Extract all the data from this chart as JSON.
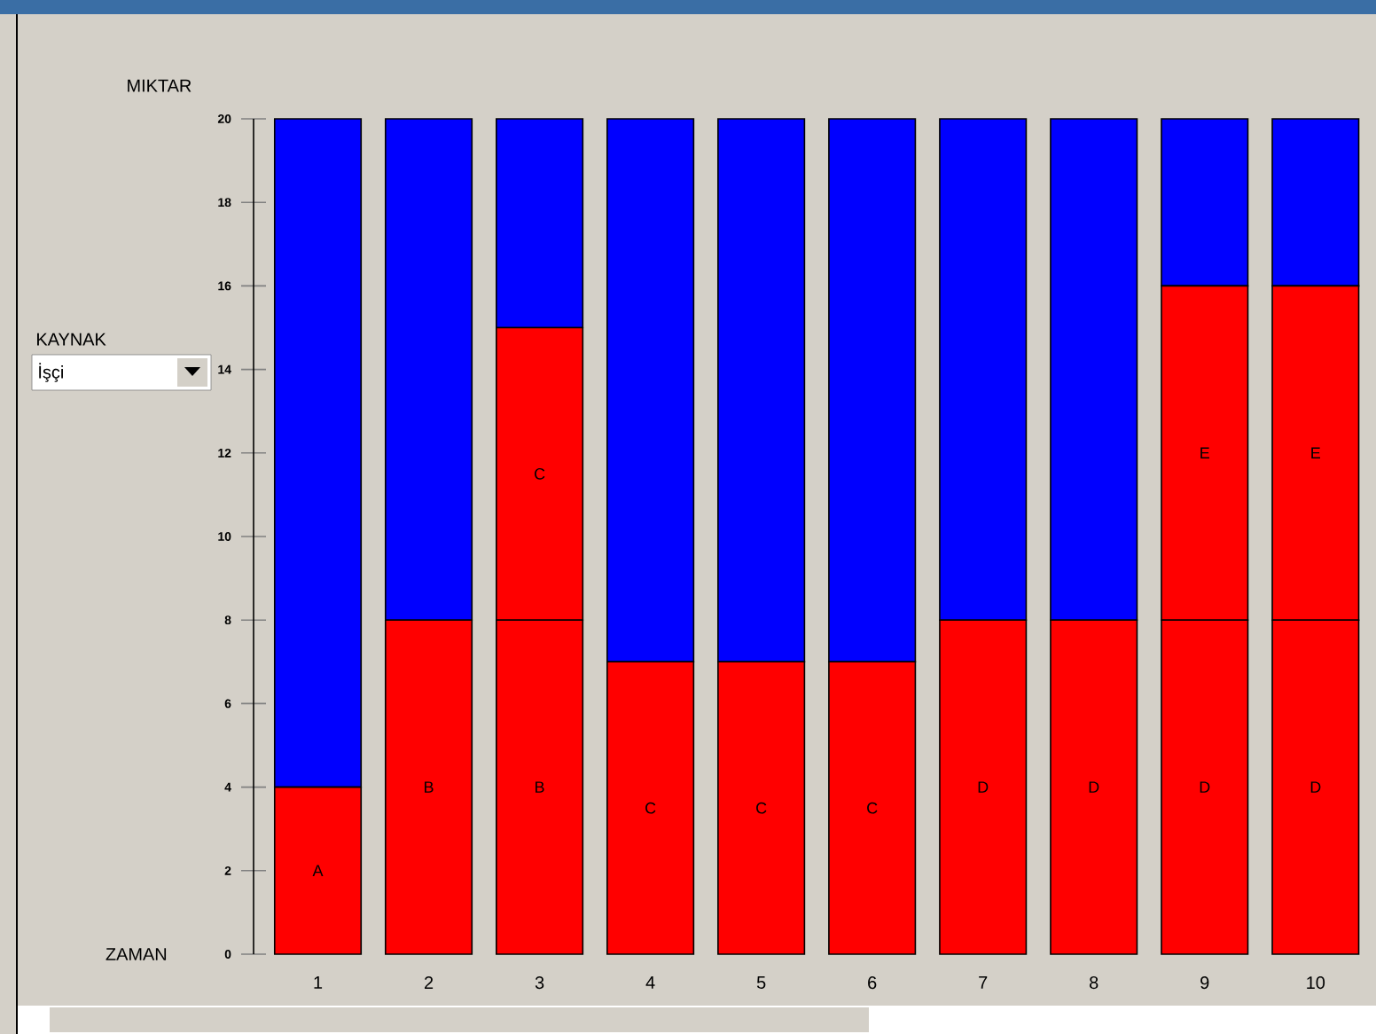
{
  "chart_data": {
    "type": "bar",
    "stacked": true,
    "xlabel": "ZAMAN",
    "ylabel": "MIKTAR",
    "categories": [
      "1",
      "2",
      "3",
      "4",
      "5",
      "6",
      "7",
      "8",
      "9",
      "10"
    ],
    "ylim": [
      0,
      20
    ],
    "yticks": [
      0,
      2,
      4,
      6,
      8,
      10,
      12,
      14,
      16,
      18,
      20
    ],
    "series": [
      {
        "color": "#ff0000",
        "values": [
          4,
          8,
          8,
          7,
          7,
          7,
          8,
          8,
          8,
          8
        ],
        "value_labels": [
          "A",
          "B",
          "B",
          "C",
          "C",
          "C",
          "D",
          "D",
          "D",
          "D"
        ]
      },
      {
        "color": "#ff0000",
        "values": [
          null,
          null,
          7,
          null,
          null,
          null,
          null,
          null,
          8,
          8
        ],
        "value_labels": [
          null,
          null,
          "C",
          null,
          null,
          null,
          null,
          null,
          "E",
          "E"
        ]
      },
      {
        "color": "#0000ff",
        "values": [
          16,
          12,
          5,
          13,
          13,
          13,
          12,
          12,
          4,
          4
        ]
      }
    ],
    "annotations": [
      "KAYNAK",
      "İşçi"
    ]
  }
}
